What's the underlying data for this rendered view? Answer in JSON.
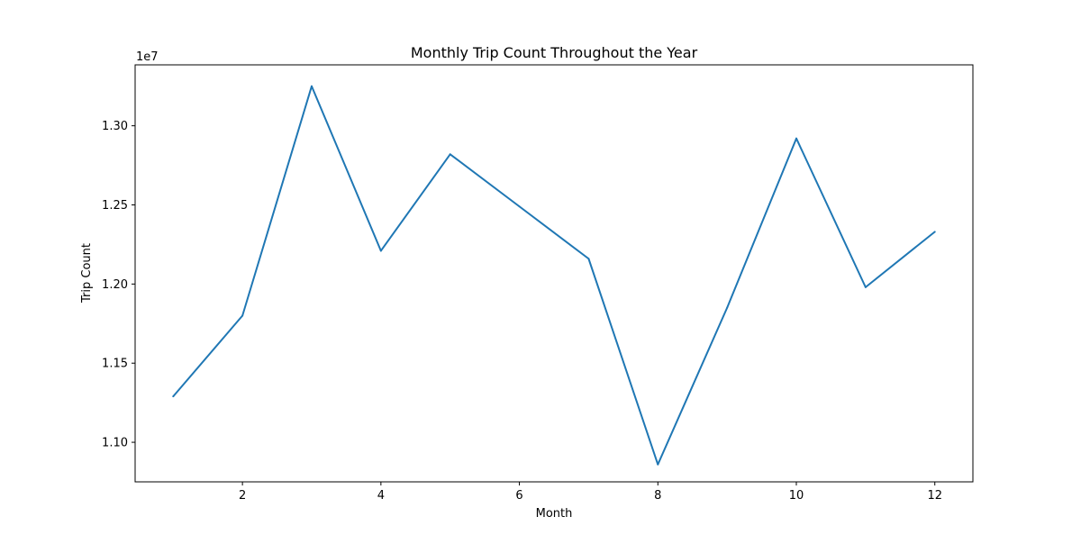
{
  "chart_data": {
    "type": "line",
    "title": "Monthly Trip Count Throughout the Year",
    "xlabel": "Month",
    "ylabel": "Trip Count",
    "y_offset_label": "1e7",
    "x": [
      1,
      2,
      3,
      4,
      5,
      6,
      7,
      8,
      9,
      10,
      11,
      12
    ],
    "series": [
      {
        "values": [
          11290000,
          11800000,
          13250000,
          12210000,
          12820000,
          12490000,
          12160000,
          10860000,
          11850000,
          12920000,
          11980000,
          12330000
        ],
        "color": "#1f77b4"
      }
    ],
    "xlim": [
      0.45,
      12.55
    ],
    "ylim": [
      10750000,
      13385000
    ],
    "x_ticks": [
      2,
      4,
      6,
      8,
      10,
      12
    ],
    "x_tick_labels": [
      "2",
      "4",
      "6",
      "8",
      "10",
      "12"
    ],
    "y_ticks": [
      11000000,
      11500000,
      12000000,
      12500000,
      13000000
    ],
    "y_tick_labels": [
      "1.10",
      "1.15",
      "1.20",
      "1.25",
      "1.30"
    ],
    "grid": false,
    "legend": "none"
  }
}
